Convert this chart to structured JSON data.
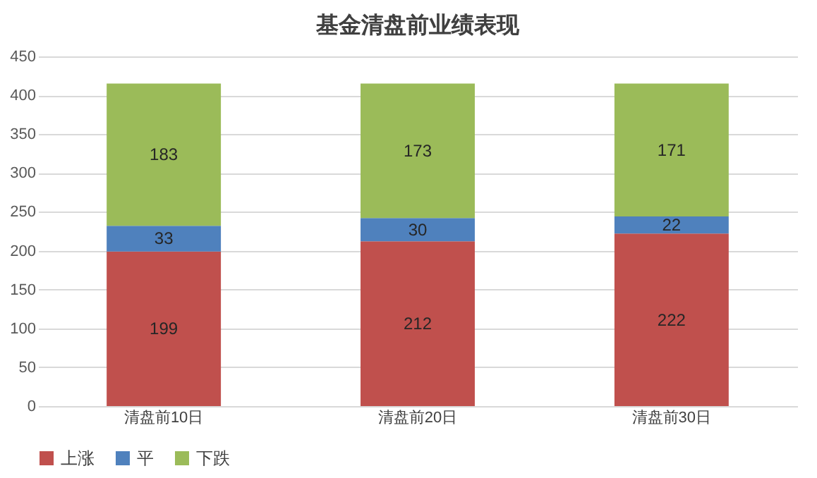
{
  "chart_data": {
    "type": "bar",
    "title": "基金清盘前业绩表现",
    "categories": [
      "清盘前10日",
      "清盘前20日",
      "清盘前30日"
    ],
    "stacked": true,
    "series": [
      {
        "name": "上涨",
        "color": "#c0504d",
        "values": [
          199,
          212,
          222
        ]
      },
      {
        "name": "平",
        "color": "#4f81bd",
        "values": [
          33,
          30,
          22
        ]
      },
      {
        "name": "下跌",
        "color": "#9bbb59",
        "values": [
          183,
          173,
          171
        ]
      }
    ],
    "ylim": [
      0,
      450
    ],
    "yticks": [
      0,
      50,
      100,
      150,
      200,
      250,
      300,
      350,
      400,
      450
    ],
    "grid": "y",
    "legend": "bottom",
    "data_labels": true
  }
}
